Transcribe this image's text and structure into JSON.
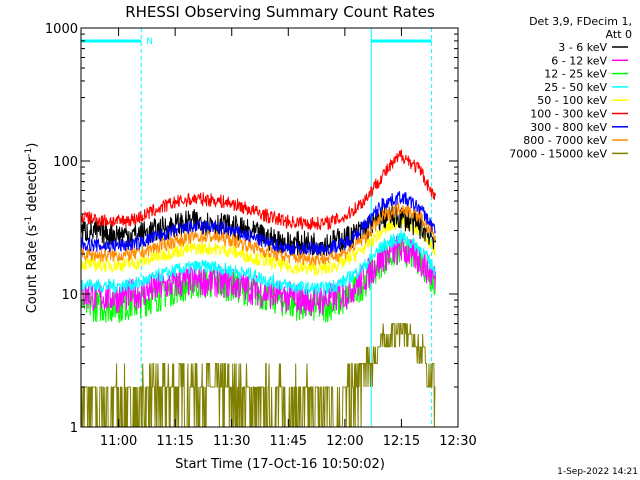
{
  "chart_data": {
    "type": "line",
    "title": "RHESSI Observing Summary Count Rates",
    "xlabel": "Start Time (17-Oct-16 10:50:02)",
    "ylabel_main": "Count Rate (s",
    "ylabel_sup1": "-1",
    "ylabel_mid": " detector",
    "ylabel_sup2": "-1",
    "ylabel_end": ")",
    "y_scale": "log",
    "ylim": [
      1,
      1000
    ],
    "xlim": [
      "10:50:02",
      "12:30"
    ],
    "x_ticks": [
      "11:00",
      "11:15",
      "11:30",
      "11:45",
      "12:00",
      "12:15",
      "12:30"
    ],
    "y_ticks": [
      "1",
      "10",
      "100",
      "1000"
    ],
    "legend_header": [
      "Det 3,9, FDecim 1,",
      "Att 0"
    ],
    "legend_placement": "right",
    "footer_date": "1-Sep-2022 14:21",
    "night_marker_label": "N",
    "night_intervals": [
      [
        "10:50:02",
        "11:06"
      ],
      [
        "12:07",
        "12:23"
      ]
    ],
    "night_bar_color": "#00ffff",
    "series": [
      {
        "name": "3 - 6 keV",
        "color": "#000000",
        "times": [
          "10:50",
          "10:55",
          "11:00",
          "11:05",
          "11:10",
          "11:15",
          "11:20",
          "11:25",
          "11:30",
          "11:35",
          "11:40",
          "11:45",
          "11:50",
          "11:55",
          "12:00",
          "12:05",
          "12:10",
          "12:15",
          "12:20",
          "12:24"
        ],
        "values": [
          30,
          29,
          28,
          28,
          30,
          33,
          35,
          34,
          32,
          29,
          26,
          24,
          24,
          24,
          26,
          30,
          38,
          38,
          32,
          26
        ]
      },
      {
        "name": "6 - 12 keV",
        "color": "#ff00ff",
        "times": [
          "10:50",
          "10:55",
          "11:00",
          "11:05",
          "11:10",
          "11:15",
          "11:20",
          "11:25",
          "11:30",
          "11:35",
          "11:40",
          "11:45",
          "11:50",
          "11:55",
          "12:00",
          "12:05",
          "12:10",
          "12:15",
          "12:20",
          "12:24"
        ],
        "values": [
          10,
          9.5,
          9.5,
          10,
          11,
          12,
          12.5,
          12.5,
          12,
          11,
          10,
          9.5,
          9,
          9,
          10,
          13,
          19,
          22,
          18,
          13
        ]
      },
      {
        "name": "12 - 25 keV",
        "color": "#00ff00",
        "times": [
          "10:50",
          "10:55",
          "11:00",
          "11:05",
          "11:10",
          "11:15",
          "11:20",
          "11:25",
          "11:30",
          "11:35",
          "11:40",
          "11:45",
          "11:50",
          "11:55",
          "12:00",
          "12:05",
          "12:10",
          "12:15",
          "12:20",
          "12:24"
        ],
        "values": [
          8.5,
          8,
          8,
          8.5,
          9.5,
          11,
          12,
          12,
          11.5,
          10.5,
          9.5,
          8.5,
          8,
          8,
          9,
          12,
          18,
          22,
          18,
          12
        ]
      },
      {
        "name": "25 - 50 keV",
        "color": "#00ffff",
        "times": [
          "10:50",
          "10:55",
          "11:00",
          "11:05",
          "11:10",
          "11:15",
          "11:20",
          "11:25",
          "11:30",
          "11:35",
          "11:40",
          "11:45",
          "11:50",
          "11:55",
          "12:00",
          "12:05",
          "12:10",
          "12:15",
          "12:20",
          "12:24"
        ],
        "values": [
          12,
          11.5,
          11.5,
          12,
          13.5,
          15,
          16,
          16,
          15,
          14,
          12.5,
          11.5,
          11,
          11,
          12.5,
          16,
          23,
          27,
          22,
          15
        ]
      },
      {
        "name": "50 - 100 keV",
        "color": "#ffff00",
        "times": [
          "10:50",
          "10:55",
          "11:00",
          "11:05",
          "11:10",
          "11:15",
          "11:20",
          "11:25",
          "11:30",
          "11:35",
          "11:40",
          "11:45",
          "11:50",
          "11:55",
          "12:00",
          "12:05",
          "12:10",
          "12:15",
          "12:20",
          "12:24"
        ],
        "values": [
          17,
          16.5,
          16.5,
          17,
          19,
          21,
          22,
          22,
          21,
          19,
          17.5,
          16,
          15.5,
          15.5,
          17.5,
          22,
          30,
          36,
          30,
          21
        ]
      },
      {
        "name": "100 - 300 keV",
        "color": "#ff0000",
        "times": [
          "10:50",
          "10:55",
          "11:00",
          "11:05",
          "11:10",
          "11:15",
          "11:20",
          "11:25",
          "11:30",
          "11:35",
          "11:40",
          "11:45",
          "11:50",
          "11:55",
          "12:00",
          "12:05",
          "12:10",
          "12:15",
          "12:20",
          "12:24"
        ],
        "values": [
          38,
          36,
          35,
          37,
          43,
          49,
          52,
          51,
          48,
          43,
          38,
          35,
          34,
          34,
          38,
          50,
          78,
          112,
          85,
          52
        ]
      },
      {
        "name": "300 - 800 keV",
        "color": "#0000ff",
        "times": [
          "10:50",
          "10:55",
          "11:00",
          "11:05",
          "11:10",
          "11:15",
          "11:20",
          "11:25",
          "11:30",
          "11:35",
          "11:40",
          "11:45",
          "11:50",
          "11:55",
          "12:00",
          "12:05",
          "12:10",
          "12:15",
          "12:20",
          "12:24"
        ],
        "values": [
          24,
          23,
          23,
          24,
          27,
          30,
          32,
          32,
          30,
          27,
          24,
          22,
          22,
          22,
          24,
          32,
          48,
          54,
          44,
          30
        ]
      },
      {
        "name": "800 - 7000 keV",
        "color": "#ff8c00",
        "times": [
          "10:50",
          "10:55",
          "11:00",
          "11:05",
          "11:10",
          "11:15",
          "11:20",
          "11:25",
          "11:30",
          "11:35",
          "11:40",
          "11:45",
          "11:50",
          "11:55",
          "12:00",
          "12:05",
          "12:10",
          "12:15",
          "12:20",
          "12:24"
        ],
        "values": [
          20,
          19.5,
          19.5,
          20,
          22.5,
          25,
          27,
          27,
          25.5,
          23,
          20.5,
          19,
          18.5,
          18.5,
          20.5,
          26,
          38,
          45,
          38,
          26
        ]
      },
      {
        "name": "7000 - 15000 keV",
        "color": "#808000",
        "times": [
          "10:50",
          "10:55",
          "11:00",
          "11:05",
          "11:10",
          "11:15",
          "11:20",
          "11:25",
          "11:30",
          "11:35",
          "11:40",
          "11:45",
          "11:50",
          "11:55",
          "12:00",
          "12:05",
          "12:10",
          "12:15",
          "12:20",
          "12:24"
        ],
        "values": [
          1.5,
          1.5,
          1.6,
          1.5,
          1.7,
          2.0,
          2.1,
          2.0,
          1.8,
          1.6,
          1.5,
          1.5,
          1.5,
          1.5,
          1.6,
          2.5,
          4.5,
          5.5,
          4.0,
          2.0
        ]
      }
    ]
  }
}
